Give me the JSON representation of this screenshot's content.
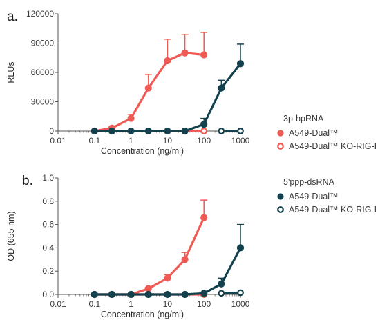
{
  "chart_data": [
    {
      "type": "line",
      "panel_label": "a.",
      "xlabel": "Concentration (ng/ml)",
      "ylabel": "RLUs",
      "xscale": "log",
      "xlim": [
        0.01,
        1000
      ],
      "ylim": [
        0,
        120000
      ],
      "x_ticks": [
        "0.01",
        "0.1",
        "1",
        "10",
        "100",
        "1000"
      ],
      "y_ticks": [
        "0",
        "30000",
        "60000",
        "90000",
        "120000"
      ],
      "y_tick_values": [
        0,
        30000,
        60000,
        90000,
        120000
      ],
      "legend_title": "3p-hpRNA",
      "series": [
        {
          "name": "A549-Dual™",
          "color": "#f05a54",
          "marker": "filled",
          "points": [
            [
              0.1,
              0
            ],
            [
              0.3,
              3000
            ],
            [
              1,
              13000
            ],
            [
              3,
              44000
            ],
            [
              10,
              72000
            ],
            [
              30,
              80000
            ],
            [
              100,
              78000
            ]
          ],
          "errors": [
            0,
            1000,
            4000,
            14000,
            22000,
            19000,
            23000
          ]
        },
        {
          "name": "A549-Dual™ KO-RIG-I",
          "color": "#f05a54",
          "marker": "open",
          "points": [
            [
              0.1,
              0
            ],
            [
              0.3,
              0
            ],
            [
              1,
              0
            ],
            [
              3,
              0
            ],
            [
              10,
              0
            ],
            [
              30,
              0
            ],
            [
              100,
              0
            ]
          ],
          "errors": [
            0,
            0,
            0,
            0,
            0,
            0,
            0
          ]
        },
        {
          "name": "A549-Dual™",
          "color": "#13414d",
          "marker": "filled",
          "points": [
            [
              0.1,
              0
            ],
            [
              0.3,
              0
            ],
            [
              1,
              0
            ],
            [
              3,
              0
            ],
            [
              10,
              0
            ],
            [
              30,
              0
            ],
            [
              100,
              7000
            ],
            [
              300,
              44000
            ],
            [
              1000,
              69000
            ]
          ],
          "errors": [
            0,
            0,
            0,
            0,
            0,
            0,
            6000,
            8000,
            20000
          ]
        },
        {
          "name": "A549-Dual™ KO-RIG-I",
          "color": "#13414d",
          "marker": "open",
          "points": [
            [
              300,
              0
            ],
            [
              1000,
              0
            ]
          ],
          "errors": [
            0,
            0
          ]
        }
      ]
    },
    {
      "type": "line",
      "panel_label": "b.",
      "xlabel": "Concentration (ng/ml)",
      "ylabel": "OD (655 nm)",
      "xscale": "log",
      "xlim": [
        0.01,
        1000
      ],
      "ylim": [
        0,
        1.0
      ],
      "x_ticks": [
        "0.01",
        "0.1",
        "1",
        "10",
        "100",
        "1000"
      ],
      "y_ticks": [
        "0.0",
        "0.2",
        "0.4",
        "0.6",
        "0.8",
        "1.0"
      ],
      "y_tick_values": [
        0,
        0.2,
        0.4,
        0.6,
        0.8,
        1.0
      ],
      "legend_title": "5'ppp-dsRNA",
      "series": [
        {
          "name": "A549-Dual™",
          "color": "#f05a54",
          "marker": "filled",
          "points": [
            [
              0.1,
              0
            ],
            [
              0.3,
              0
            ],
            [
              1,
              0
            ],
            [
              3,
              0.05
            ],
            [
              10,
              0.14
            ],
            [
              30,
              0.3
            ],
            [
              100,
              0.66
            ]
          ],
          "errors": [
            0,
            0,
            0,
            0.01,
            0.03,
            0.06,
            0.15
          ]
        },
        {
          "name": "A549-Dual™ KO-RIG-I",
          "color": "#f05a54",
          "marker": "open",
          "points": [
            [
              0.1,
              0
            ],
            [
              0.3,
              0
            ],
            [
              1,
              0
            ],
            [
              3,
              0
            ],
            [
              10,
              0
            ],
            [
              30,
              0
            ],
            [
              100,
              0
            ]
          ],
          "errors": [
            0,
            0,
            0,
            0,
            0,
            0,
            0
          ]
        },
        {
          "name": "A549-Dual™",
          "color": "#13414d",
          "marker": "filled",
          "points": [
            [
              0.1,
              0
            ],
            [
              0.3,
              0
            ],
            [
              1,
              0
            ],
            [
              3,
              0
            ],
            [
              10,
              0
            ],
            [
              30,
              0
            ],
            [
              100,
              0.01
            ],
            [
              300,
              0.09
            ],
            [
              1000,
              0.4
            ]
          ],
          "errors": [
            0,
            0,
            0,
            0,
            0,
            0,
            0,
            0.05,
            0.2
          ]
        },
        {
          "name": "A549-Dual™ KO-RIG-I",
          "color": "#13414d",
          "marker": "open",
          "points": [
            [
              300,
              0.01
            ],
            [
              1000,
              0.015
            ]
          ],
          "errors": [
            0,
            0
          ]
        }
      ]
    }
  ]
}
